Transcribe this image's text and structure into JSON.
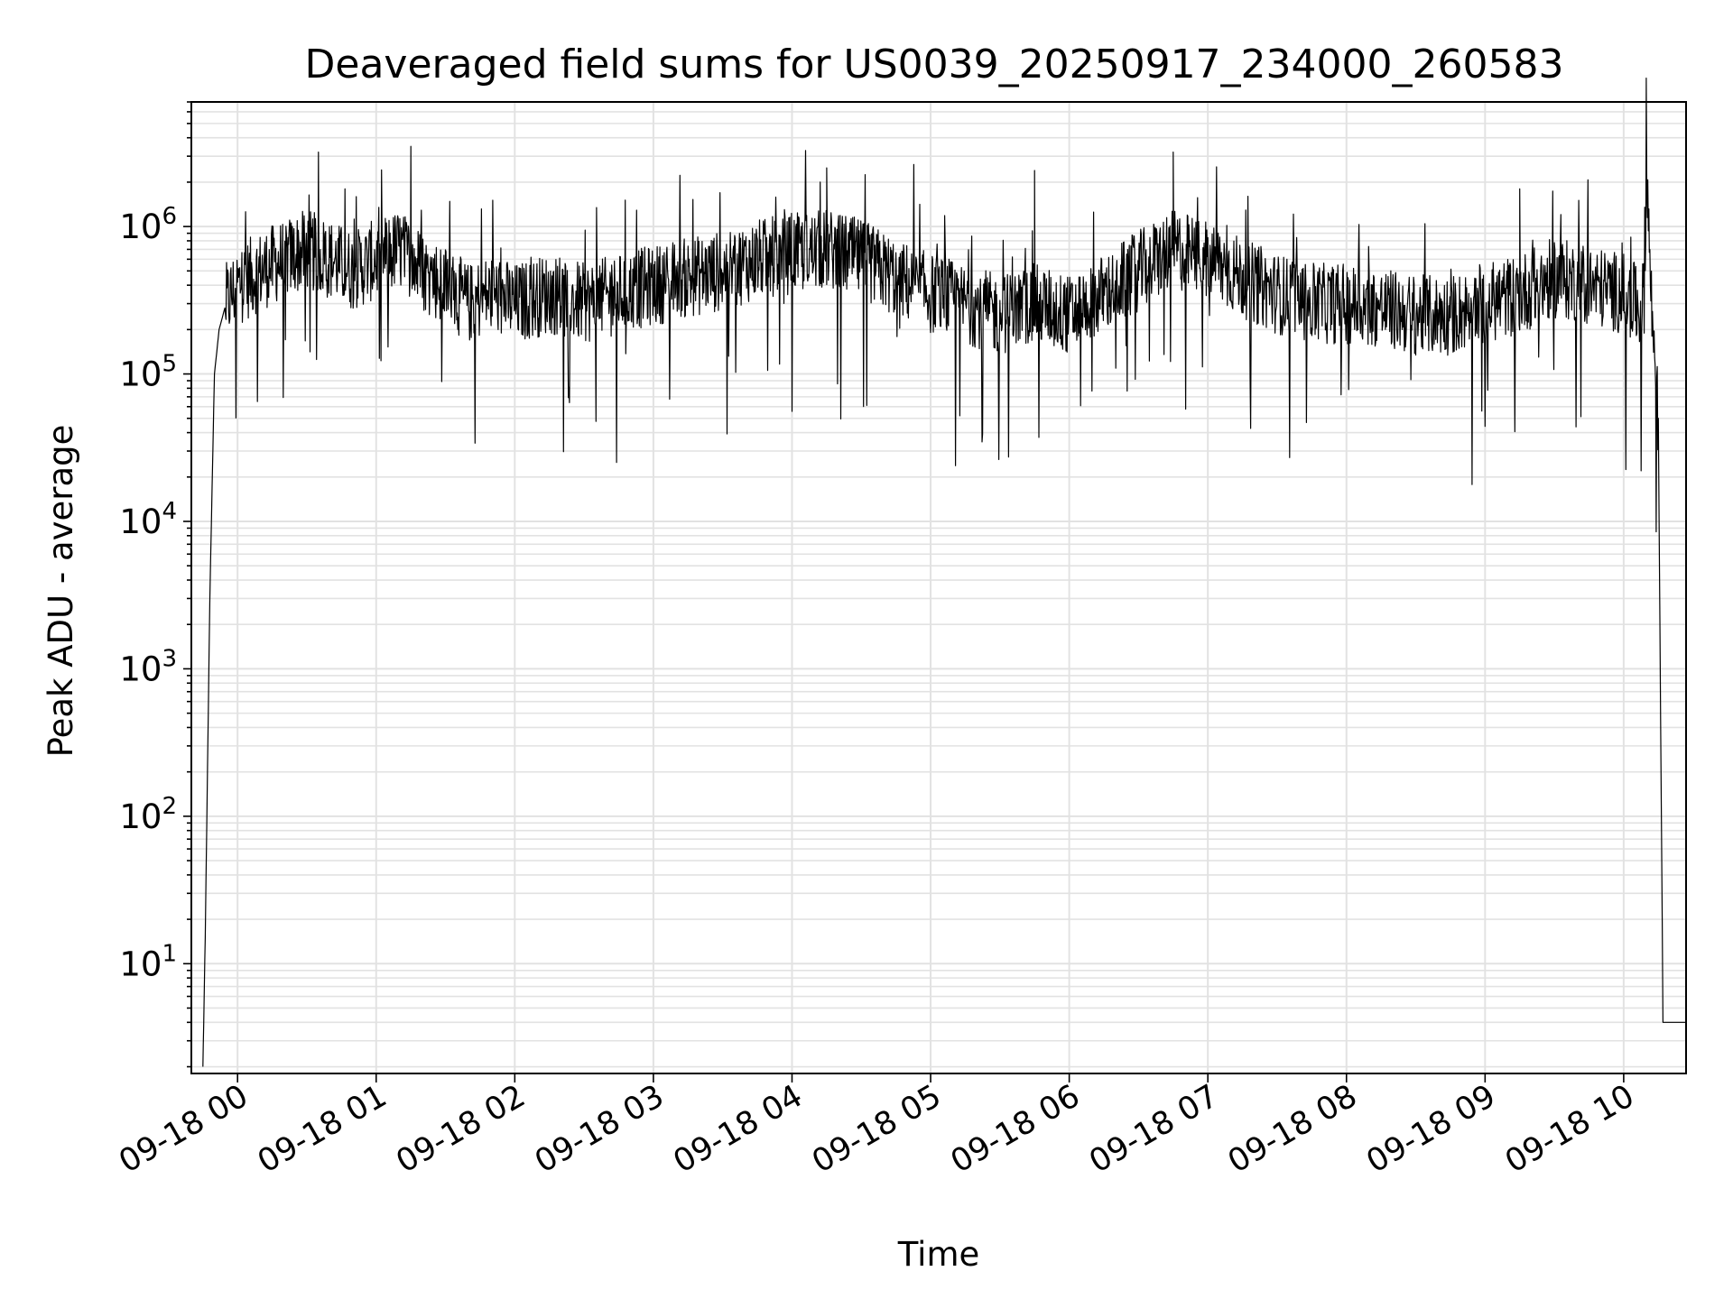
{
  "chart_data": {
    "type": "line",
    "title": "Deaveraged field sums for US0039_20250917_234000_260583",
    "xlabel": "Time",
    "ylabel": "Peak ADU - average",
    "yscale": "log",
    "grid": true,
    "line_color": "#000000",
    "xlim": [
      "2025-09-17 23:40",
      "2025-09-18 10:27"
    ],
    "ylim": [
      1.8,
      7000000
    ],
    "x_ticks": [
      "09-18 00",
      "09-18 01",
      "09-18 02",
      "09-18 03",
      "09-18 04",
      "09-18 05",
      "09-18 06",
      "09-18 07",
      "09-18 08",
      "09-18 09",
      "09-18 10"
    ],
    "y_ticks": [
      {
        "base": "10",
        "exp": "1"
      },
      {
        "base": "10",
        "exp": "2"
      },
      {
        "base": "10",
        "exp": "3"
      },
      {
        "base": "10",
        "exp": "4"
      },
      {
        "base": "10",
        "exp": "5"
      },
      {
        "base": "10",
        "exp": "6"
      }
    ],
    "series": [
      {
        "x": [
          "2025-09-17 23:45",
          "2025-09-17 23:46",
          "2025-09-17 23:48",
          "2025-09-17 23:50",
          "2025-09-17 23:52",
          "2025-09-17 23:55",
          "2025-09-18 00:00",
          "2025-09-18 00:10",
          "2025-09-18 00:20",
          "2025-09-18 00:30",
          "2025-09-18 00:40",
          "2025-09-18 00:50",
          "2025-09-18 01:00",
          "2025-09-18 01:10",
          "2025-09-18 01:20",
          "2025-09-18 01:30",
          "2025-09-18 01:40",
          "2025-09-18 01:50",
          "2025-09-18 02:00",
          "2025-09-18 02:15",
          "2025-09-18 02:30",
          "2025-09-18 02:45",
          "2025-09-18 03:00",
          "2025-09-18 03:15",
          "2025-09-18 03:30",
          "2025-09-18 03:45",
          "2025-09-18 04:00",
          "2025-09-18 04:15",
          "2025-09-18 04:30",
          "2025-09-18 04:45",
          "2025-09-18 05:00",
          "2025-09-18 05:15",
          "2025-09-18 05:30",
          "2025-09-18 05:45",
          "2025-09-18 06:00",
          "2025-09-18 06:15",
          "2025-09-18 06:30",
          "2025-09-18 06:45",
          "2025-09-18 07:00",
          "2025-09-18 07:15",
          "2025-09-18 07:30",
          "2025-09-18 07:45",
          "2025-09-18 08:00",
          "2025-09-18 08:15",
          "2025-09-18 08:30",
          "2025-09-18 08:45",
          "2025-09-18 09:00",
          "2025-09-18 09:15",
          "2025-09-18 09:30",
          "2025-09-18 09:45",
          "2025-09-18 10:00",
          "2025-09-18 10:05",
          "2025-09-18 10:08",
          "2025-09-18 10:10",
          "2025-09-18 10:12",
          "2025-09-18 10:15",
          "2025-09-18 10:17",
          "2025-09-18 10:20",
          "2025-09-18 10:27"
        ],
        "values": [
          2,
          15,
          3000,
          100000,
          200000,
          300000,
          400000,
          500000,
          600000,
          700000,
          600000,
          500000,
          600000,
          700000,
          500000,
          400000,
          300000,
          350000,
          300000,
          350000,
          300000,
          350000,
          400000,
          450000,
          500000,
          600000,
          650000,
          700000,
          600000,
          450000,
          350000,
          300000,
          250000,
          300000,
          250000,
          350000,
          500000,
          700000,
          600000,
          450000,
          350000,
          300000,
          300000,
          280000,
          250000,
          250000,
          300000,
          350000,
          450000,
          400000,
          350000,
          300000,
          250000,
          2400000,
          300000,
          50000,
          4,
          4,
          4
        ],
        "peaks": [
          {
            "x": "2025-09-18 00:35",
            "value": 3200000
          },
          {
            "x": "2025-09-18 01:15",
            "value": 3500000
          },
          {
            "x": "2025-09-18 04:15",
            "value": 2500000
          },
          {
            "x": "2025-09-18 05:45",
            "value": 2400000
          },
          {
            "x": "2025-09-18 06:45",
            "value": 3200000
          },
          {
            "x": "2025-09-18 09:15",
            "value": 1800000
          }
        ]
      }
    ]
  }
}
